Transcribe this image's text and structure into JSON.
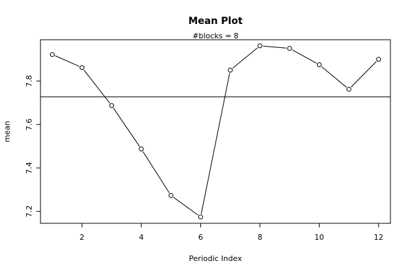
{
  "chart_data": {
    "type": "line",
    "title": "Mean Plot",
    "subtitle": "#blocks =  8",
    "xlabel": "Periodic Index",
    "ylabel": "mean",
    "x": [
      1,
      2,
      3,
      4,
      5,
      6,
      7,
      8,
      9,
      10,
      11,
      12
    ],
    "series": [
      {
        "values": [
          7.922,
          7.862,
          7.687,
          7.487,
          7.273,
          7.174,
          7.85,
          7.962,
          7.95,
          7.875,
          7.762,
          7.9
        ]
      }
    ],
    "reference_line": 7.727,
    "xlim": [
      0.6,
      12.4
    ],
    "ylim": [
      7.145,
      7.99
    ],
    "xticks": [
      2,
      4,
      6,
      8,
      10,
      12
    ],
    "yticks": [
      7.2,
      7.4,
      7.6,
      7.8
    ],
    "xtick_labels": [
      "2",
      "4",
      "6",
      "8",
      "10",
      "12"
    ],
    "ytick_labels": [
      "7.2",
      "7.4",
      "7.6",
      "7.8"
    ],
    "grid": false,
    "line_color": "#000000",
    "marker": "open-circle"
  }
}
